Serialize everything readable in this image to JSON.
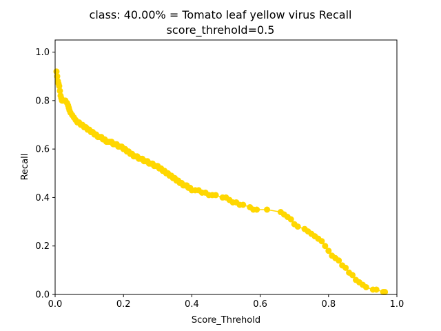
{
  "chart_data": {
    "type": "line",
    "title": "class: 40.00% = Tomato leaf yellow virus Recall",
    "subtitle": "score_threhold=0.5",
    "xlabel": "Score_Threhold",
    "ylabel": "Recall",
    "xlim": [
      0.0,
      1.0
    ],
    "ylim": [
      0.0,
      1.05
    ],
    "xticks": [
      "0.0",
      "0.2",
      "0.4",
      "0.6",
      "0.8",
      "1.0"
    ],
    "yticks": [
      "0.0",
      "0.2",
      "0.4",
      "0.6",
      "0.8",
      "1.0"
    ],
    "grid": false,
    "marker": "circle",
    "color": "#FFD700",
    "series": [
      {
        "x": [
          0.004,
          0.006,
          0.008,
          0.01,
          0.012,
          0.014,
          0.016,
          0.018,
          0.02,
          0.022,
          0.025,
          0.03,
          0.035,
          0.038,
          0.04,
          0.042,
          0.045,
          0.05,
          0.055,
          0.06,
          0.065,
          0.07,
          0.075,
          0.08,
          0.085,
          0.09,
          0.095,
          0.1,
          0.105,
          0.11,
          0.115,
          0.12,
          0.125,
          0.13,
          0.135,
          0.14,
          0.145,
          0.15,
          0.155,
          0.16,
          0.165,
          0.17,
          0.175,
          0.18,
          0.185,
          0.19,
          0.195,
          0.2,
          0.205,
          0.21,
          0.215,
          0.22,
          0.225,
          0.23,
          0.235,
          0.24,
          0.245,
          0.25,
          0.255,
          0.26,
          0.265,
          0.27,
          0.275,
          0.28,
          0.285,
          0.29,
          0.295,
          0.3,
          0.305,
          0.31,
          0.315,
          0.32,
          0.325,
          0.33,
          0.335,
          0.34,
          0.345,
          0.35,
          0.355,
          0.36,
          0.365,
          0.37,
          0.375,
          0.38,
          0.385,
          0.39,
          0.395,
          0.4,
          0.41,
          0.42,
          0.43,
          0.44,
          0.45,
          0.46,
          0.47,
          0.49,
          0.5,
          0.51,
          0.52,
          0.53,
          0.54,
          0.55,
          0.57,
          0.58,
          0.59,
          0.62,
          0.66,
          0.67,
          0.68,
          0.69,
          0.7,
          0.71,
          0.73,
          0.74,
          0.75,
          0.76,
          0.77,
          0.78,
          0.79,
          0.8,
          0.81,
          0.82,
          0.83,
          0.84,
          0.85,
          0.86,
          0.87,
          0.88,
          0.89,
          0.9,
          0.91,
          0.93,
          0.94,
          0.96,
          0.965
        ],
        "y": [
          0.92,
          0.9,
          0.88,
          0.87,
          0.86,
          0.84,
          0.82,
          0.81,
          0.8,
          0.8,
          0.8,
          0.8,
          0.79,
          0.78,
          0.77,
          0.76,
          0.75,
          0.74,
          0.73,
          0.72,
          0.71,
          0.71,
          0.7,
          0.7,
          0.69,
          0.69,
          0.68,
          0.68,
          0.67,
          0.67,
          0.66,
          0.66,
          0.65,
          0.65,
          0.65,
          0.64,
          0.64,
          0.63,
          0.63,
          0.63,
          0.63,
          0.62,
          0.62,
          0.62,
          0.61,
          0.61,
          0.61,
          0.6,
          0.6,
          0.59,
          0.59,
          0.58,
          0.58,
          0.57,
          0.57,
          0.57,
          0.56,
          0.56,
          0.56,
          0.55,
          0.55,
          0.55,
          0.54,
          0.54,
          0.54,
          0.53,
          0.53,
          0.53,
          0.52,
          0.52,
          0.51,
          0.51,
          0.5,
          0.5,
          0.49,
          0.49,
          0.48,
          0.48,
          0.47,
          0.47,
          0.46,
          0.46,
          0.45,
          0.45,
          0.45,
          0.44,
          0.44,
          0.43,
          0.43,
          0.43,
          0.42,
          0.42,
          0.41,
          0.41,
          0.41,
          0.4,
          0.4,
          0.39,
          0.38,
          0.38,
          0.37,
          0.37,
          0.36,
          0.35,
          0.35,
          0.35,
          0.34,
          0.33,
          0.32,
          0.31,
          0.29,
          0.28,
          0.27,
          0.26,
          0.25,
          0.24,
          0.23,
          0.22,
          0.2,
          0.18,
          0.16,
          0.15,
          0.14,
          0.12,
          0.11,
          0.09,
          0.08,
          0.06,
          0.05,
          0.04,
          0.03,
          0.02,
          0.02,
          0.01,
          0.01
        ]
      }
    ]
  }
}
